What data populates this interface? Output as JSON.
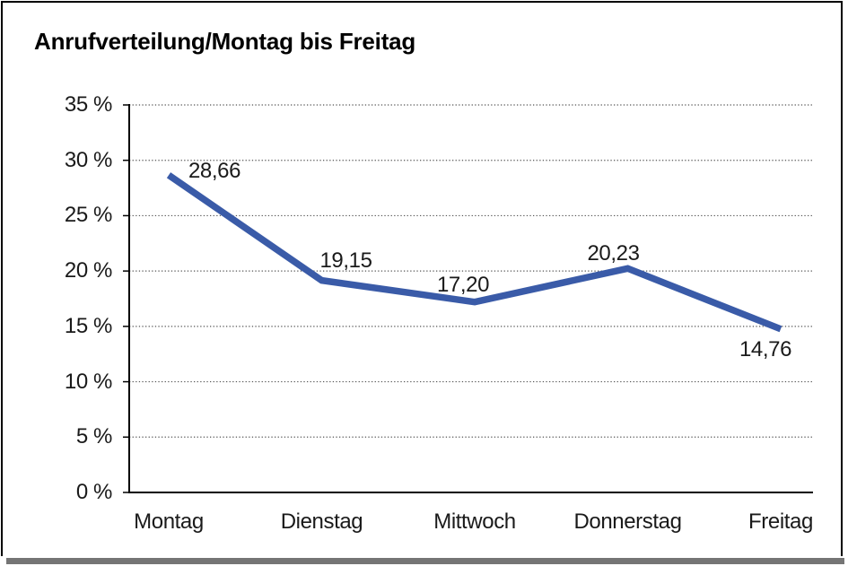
{
  "title": "Anrufverteilung/Montag bis Freitag",
  "frame": {
    "border_color": "#000000",
    "shadow_color": "#757575",
    "background": "#ffffff"
  },
  "chart_data": {
    "type": "line",
    "title": "Anrufverteilung/Montag bis Freitag",
    "categories": [
      "Montag",
      "Dienstag",
      "Mittwoch",
      "Donnerstag",
      "Freitag"
    ],
    "values": [
      28.66,
      19.15,
      17.2,
      20.23,
      14.76
    ],
    "data_labels": [
      "28,66",
      "19,15",
      "17,20",
      "20,23",
      "14,76"
    ],
    "xlabel": "",
    "ylabel": "",
    "ylim": [
      0,
      35
    ],
    "ytick_step": 5,
    "ytick_labels": [
      "0 %",
      "5 %",
      "10 %",
      "15 %",
      "20 %",
      "25 %",
      "30 %",
      "35 %"
    ],
    "grid": "horizontal-dotted",
    "legend": "none",
    "line_color": "#3A5BA8",
    "gridline_color": "#555555",
    "axis_color": "#000000",
    "text_color": "#1a1a1a"
  }
}
